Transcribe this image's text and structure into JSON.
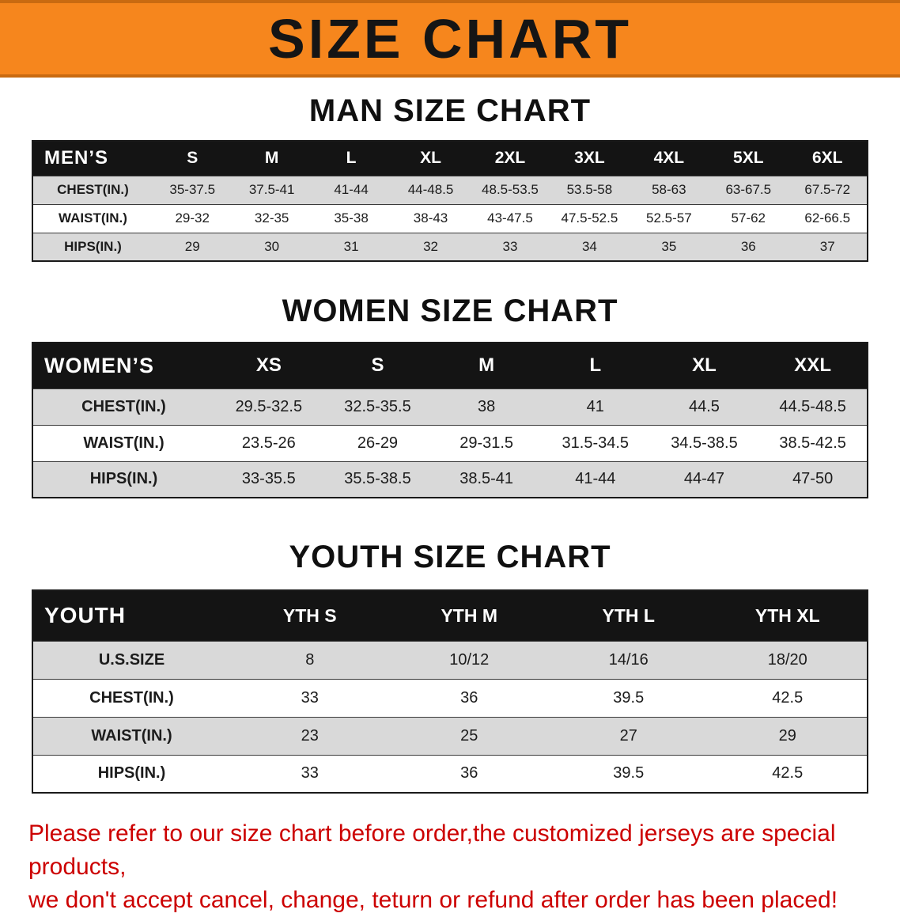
{
  "theme": {
    "banner_bg": "#f6861d",
    "header_bg": "#141414",
    "stripe_bg": "#d9d9d9",
    "disclaimer_color": "#cc0000"
  },
  "banner": {
    "title": "SIZE CHART"
  },
  "sections": [
    {
      "heading": "MAN SIZE CHART",
      "table": {
        "header_label": "MEN’S",
        "columns": [
          "S",
          "M",
          "L",
          "XL",
          "2XL",
          "3XL",
          "4XL",
          "5XL",
          "6XL"
        ],
        "rows": [
          {
            "label": "CHEST(IN.)",
            "values": [
              "35-37.5",
              "37.5-41",
              "41-44",
              "44-48.5",
              "48.5-53.5",
              "53.5-58",
              "58-63",
              "63-67.5",
              "67.5-72"
            ]
          },
          {
            "label": "WAIST(IN.)",
            "values": [
              "29-32",
              "32-35",
              "35-38",
              "38-43",
              "43-47.5",
              "47.5-52.5",
              "52.5-57",
              "57-62",
              "62-66.5"
            ]
          },
          {
            "label": "HIPS(IN.)",
            "values": [
              "29",
              "30",
              "31",
              "32",
              "33",
              "34",
              "35",
              "36",
              "37"
            ]
          }
        ]
      }
    },
    {
      "heading": "WOMEN SIZE CHART",
      "table": {
        "header_label": "WOMEN’S",
        "columns": [
          "XS",
          "S",
          "M",
          "L",
          "XL",
          "XXL"
        ],
        "rows": [
          {
            "label": "CHEST(IN.)",
            "values": [
              "29.5-32.5",
              "32.5-35.5",
              "38",
              "41",
              "44.5",
              "44.5-48.5"
            ]
          },
          {
            "label": "WAIST(IN.)",
            "values": [
              "23.5-26",
              "26-29",
              "29-31.5",
              "31.5-34.5",
              "34.5-38.5",
              "38.5-42.5"
            ]
          },
          {
            "label": "HIPS(IN.)",
            "values": [
              "33-35.5",
              "35.5-38.5",
              "38.5-41",
              "41-44",
              "44-47",
              "47-50"
            ]
          }
        ]
      }
    },
    {
      "heading": "YOUTH SIZE CHART",
      "table": {
        "header_label": "YOUTH",
        "columns": [
          "YTH S",
          "YTH M",
          "YTH L",
          "YTH XL"
        ],
        "rows": [
          {
            "label": "U.S.SIZE",
            "values": [
              "8",
              "10/12",
              "14/16",
              "18/20"
            ]
          },
          {
            "label": "CHEST(IN.)",
            "values": [
              "33",
              "36",
              "39.5",
              "42.5"
            ]
          },
          {
            "label": "WAIST(IN.)",
            "values": [
              "23",
              "25",
              "27",
              "29"
            ]
          },
          {
            "label": "HIPS(IN.)",
            "values": [
              "33",
              "36",
              "39.5",
              "42.5"
            ]
          }
        ]
      }
    }
  ],
  "disclaimer": {
    "line1": "Please refer to our size chart before order,the customized jerseys are special products,",
    "line2": "we don't accept cancel, change, teturn or refund after order has been placed!"
  }
}
